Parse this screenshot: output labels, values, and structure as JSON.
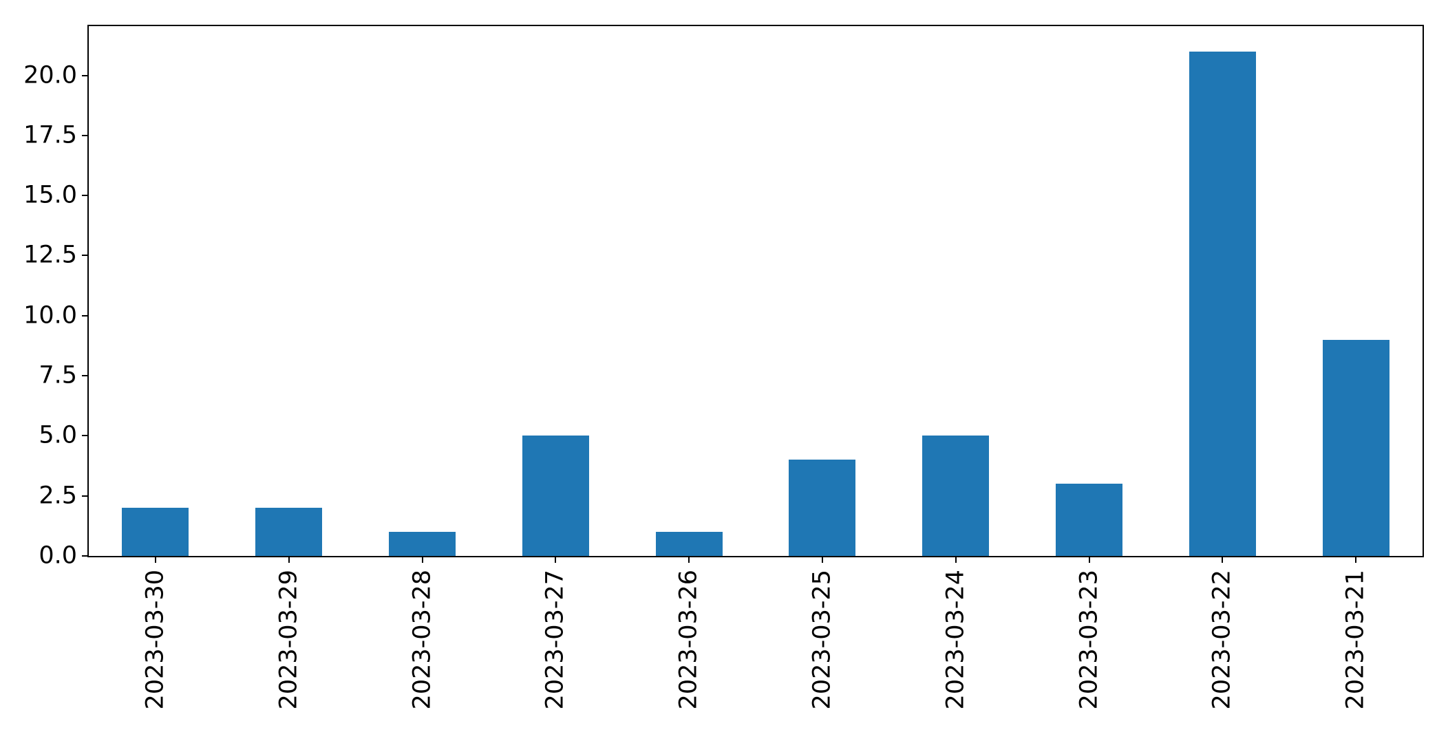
{
  "chart_data": {
    "type": "bar",
    "title": "",
    "xlabel": "",
    "ylabel": "",
    "categories": [
      "2023-03-30",
      "2023-03-29",
      "2023-03-28",
      "2023-03-27",
      "2023-03-26",
      "2023-03-25",
      "2023-03-24",
      "2023-03-23",
      "2023-03-22",
      "2023-03-21"
    ],
    "values": [
      2,
      2,
      1,
      5,
      1,
      4,
      5,
      3,
      21,
      9
    ],
    "ylim": [
      0,
      22.05
    ],
    "yticks": [
      0.0,
      2.5,
      5.0,
      7.5,
      10.0,
      12.5,
      15.0,
      17.5,
      20.0
    ],
    "ytick_labels": [
      "0.0",
      "2.5",
      "5.0",
      "7.5",
      "10.0",
      "12.5",
      "15.0",
      "17.5",
      "20.0"
    ],
    "grid": "off",
    "legend": "none",
    "bar_relative_width": 0.5,
    "bar_color": "#1f77b4",
    "axis_color": "#000000",
    "background_color": "#ffffff"
  }
}
